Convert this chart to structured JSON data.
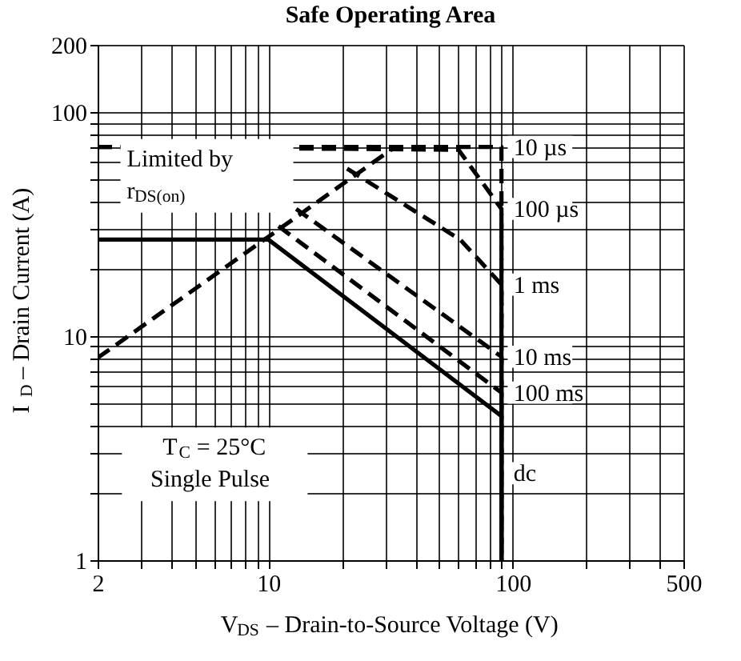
{
  "chart_data": {
    "type": "line",
    "title": "Safe Operating Area",
    "xlabel": "V$_{DS}$ – Drain-to-Source Voltage (V)",
    "ylabel": "I$_{D}$ – Drain Current (A)",
    "log": "xy",
    "grid": true,
    "legend": false,
    "xlim": [
      2,
      500
    ],
    "ylim": [
      1,
      200
    ],
    "xticks": [
      2,
      {
        "value": 3,
        "label": null
      },
      {
        "value": 4,
        "label": null
      },
      {
        "value": 5,
        "label": null
      },
      {
        "value": 6,
        "label": null
      },
      {
        "value": 7,
        "label": null
      },
      {
        "value": 8,
        "label": null
      },
      {
        "value": 9,
        "label": null
      },
      10,
      {
        "value": 20,
        "label": null
      },
      {
        "value": 30,
        "label": null
      },
      {
        "value": 40,
        "label": null
      },
      {
        "value": 50,
        "label": null
      },
      {
        "value": 60,
        "label": null
      },
      {
        "value": 70,
        "label": null
      },
      {
        "value": 80,
        "label": null
      },
      {
        "value": 90,
        "label": null
      },
      100,
      {
        "value": 200,
        "label": null
      },
      {
        "value": 300,
        "label": null
      },
      {
        "value": 400,
        "label": null
      },
      500
    ],
    "yticks": [
      1,
      {
        "value": 2,
        "label": null
      },
      {
        "value": 3,
        "label": null
      },
      {
        "value": 4,
        "label": null
      },
      {
        "value": 5,
        "label": null
      },
      {
        "value": 6,
        "label": null
      },
      {
        "value": 7,
        "label": null
      },
      {
        "value": 8,
        "label": null
      },
      {
        "value": 9,
        "label": null
      },
      10,
      {
        "value": 20,
        "label": null
      },
      {
        "value": 30,
        "label": null
      },
      {
        "value": 40,
        "label": null
      },
      {
        "value": 50,
        "label": null
      },
      {
        "value": 60,
        "label": null
      },
      {
        "value": 70,
        "label": null
      },
      {
        "value": 80,
        "label": null
      },
      {
        "value": 90,
        "label": null
      },
      100,
      200
    ],
    "series": [
      {
        "color": "#000000",
        "line_style": "dashed",
        "x": [
          2,
          33
        ],
        "values": [
          8,
          70
        ]
      },
      {
        "name": "10 µs",
        "color": "#000000",
        "line_style": "dashed",
        "x": [
          2,
          90,
          90
        ],
        "values": [
          70,
          70,
          1
        ]
      },
      {
        "name": "100 µs",
        "color": "#000000",
        "line_style": "dashed",
        "x": [
          2,
          60,
          90,
          90
        ],
        "values": [
          70,
          68,
          37,
          1
        ]
      },
      {
        "name": "1 ms",
        "color": "#000000",
        "line_style": "dashed",
        "x": [
          21,
          61,
          90,
          90
        ],
        "values": [
          56,
          27,
          17,
          1
        ]
      },
      {
        "name": "10 ms",
        "color": "#000000",
        "line_style": "dashed",
        "x": [
          13,
          90,
          90
        ],
        "values": [
          37,
          8.1,
          1
        ]
      },
      {
        "name": "100 ms",
        "color": "#000000",
        "line_style": "dashed",
        "x": [
          11,
          90,
          90
        ],
        "values": [
          31,
          5.6,
          1
        ]
      },
      {
        "name": "dc",
        "color": "#000000",
        "line_style": "solid",
        "x": [
          2,
          10,
          90,
          90
        ],
        "values": [
          27,
          27,
          4.4,
          1
        ]
      }
    ],
    "annotations": [
      "Limited by r$_{DS(on)}$",
      "T$_{C}$ = 25°C Single Pulse"
    ]
  }
}
